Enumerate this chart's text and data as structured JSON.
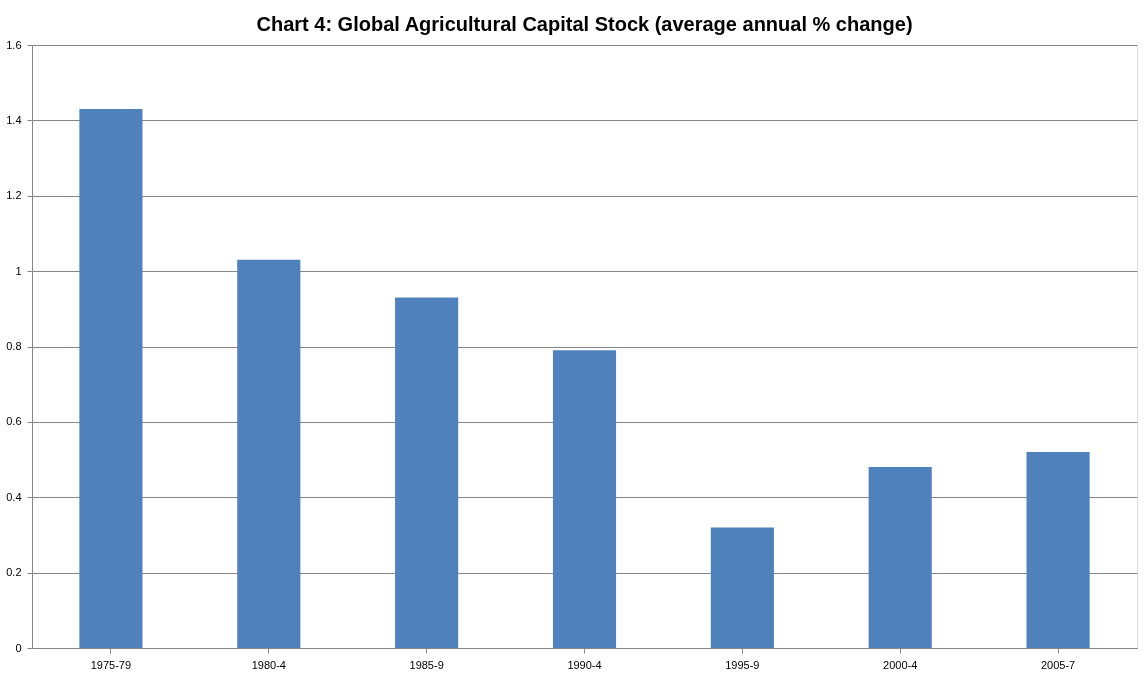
{
  "chart_data": {
    "type": "bar",
    "title": "Chart 4: Global Agricultural Capital Stock (average annual % change)",
    "categories": [
      "1975-79",
      "1980-4",
      "1985-9",
      "1990-4",
      "1995-9",
      "2000-4",
      "2005-7"
    ],
    "values": [
      1.43,
      1.03,
      0.93,
      0.79,
      0.32,
      0.48,
      0.52
    ],
    "color": "#4f81bd",
    "ylim": [
      0,
      1.6
    ],
    "yticks": [
      0,
      0.2,
      0.4,
      0.6,
      0.8,
      1,
      1.2,
      1.4,
      1.6
    ],
    "grid": "y"
  }
}
